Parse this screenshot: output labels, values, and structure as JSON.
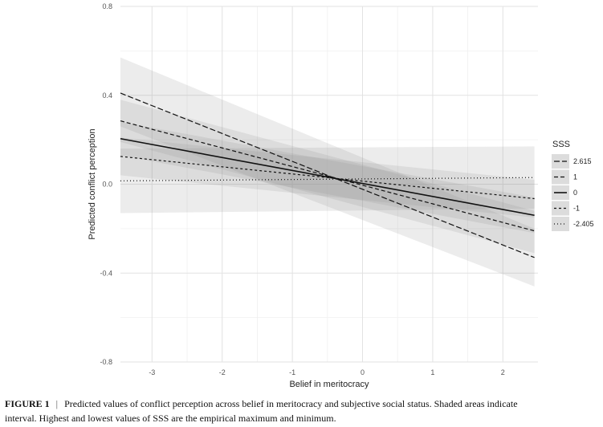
{
  "chart_data": {
    "type": "line",
    "title": "",
    "xlabel": "Belief in meritocracy",
    "ylabel": "Predicted conflict perception",
    "xlim": [
      -3.45,
      2.5
    ],
    "ylim": [
      -0.8,
      0.8
    ],
    "x_ticks": [
      -3,
      -2,
      -1,
      0,
      1,
      2
    ],
    "x_tick_labels": [
      "-3",
      "-2",
      "-1",
      "0",
      "1",
      "2"
    ],
    "y_ticks": [
      -0.8,
      -0.4,
      0.0,
      0.4,
      0.8
    ],
    "y_tick_labels": [
      "-0.8",
      "-0.4",
      "0.0",
      "0.4",
      "0.8"
    ],
    "grid": true,
    "legend_title": "SSS",
    "legend_position": "right",
    "x": [
      -3.45,
      2.45
    ],
    "series": [
      {
        "name": "2.615",
        "dash": "longdash",
        "values": [
          0.41,
          -0.33
        ],
        "ci_lower": [
          0.26,
          -0.46
        ],
        "ci_upper": [
          0.57,
          -0.2
        ]
      },
      {
        "name": "1",
        "dash": "dashed",
        "values": [
          0.285,
          -0.21
        ],
        "ci_lower": [
          0.19,
          -0.31
        ],
        "ci_upper": [
          0.38,
          -0.12
        ]
      },
      {
        "name": "0",
        "dash": "solid",
        "values": [
          0.205,
          -0.14
        ],
        "ci_lower": [
          0.13,
          -0.22
        ],
        "ci_upper": [
          0.28,
          -0.06
        ]
      },
      {
        "name": "-1",
        "dash": "shortdash",
        "values": [
          0.125,
          -0.065
        ],
        "ci_lower": [
          0.04,
          -0.15
        ],
        "ci_upper": [
          0.21,
          0.02
        ]
      },
      {
        "name": "-2.405",
        "dash": "dotted",
        "values": [
          0.015,
          0.03
        ],
        "ci_lower": [
          -0.13,
          -0.11
        ],
        "ci_upper": [
          0.16,
          0.17
        ]
      }
    ]
  },
  "caption": {
    "label": "FIGURE 1",
    "separator": "|",
    "line1": "Predicted values of conflict perception across belief in meritocracy and subjective social status. Shaded areas indicate",
    "line2": "interval. Highest and lowest values of SSS are the empirical maximum and minimum."
  }
}
